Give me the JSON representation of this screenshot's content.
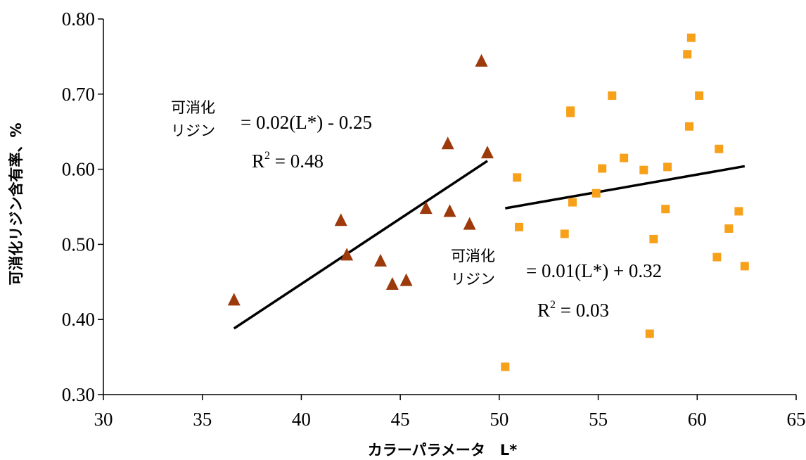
{
  "chart_data": {
    "type": "scatter",
    "xlabel": "カラーパラメータ　L*",
    "ylabel": "可消化リジン含有率、%",
    "xlim": [
      30,
      65
    ],
    "ylim": [
      0.3,
      0.8
    ],
    "x_ticks": [
      "30",
      "35",
      "40",
      "45",
      "50",
      "55",
      "60",
      "65"
    ],
    "y_ticks": [
      "0.30",
      "0.40",
      "0.50",
      "0.60",
      "0.70",
      "0.80"
    ],
    "grid": false,
    "legend": "none",
    "series": [
      {
        "marker": "triangle",
        "color": "#9c3a0c",
        "points": [
          [
            36.6,
            0.426
          ],
          [
            42.0,
            0.532
          ],
          [
            42.3,
            0.486
          ],
          [
            44.0,
            0.478
          ],
          [
            44.6,
            0.447
          ],
          [
            45.3,
            0.452
          ],
          [
            46.3,
            0.548
          ],
          [
            47.4,
            0.634
          ],
          [
            47.5,
            0.544
          ],
          [
            48.5,
            0.527
          ],
          [
            49.1,
            0.744
          ],
          [
            49.4,
            0.622
          ]
        ],
        "trendline": {
          "x": [
            36.6,
            49.4
          ],
          "y": [
            0.388,
            0.611
          ]
        },
        "annotation": {
          "label_lines": [
            "可消化",
            "リジン"
          ],
          "equation": "= 0.02(L*) - 0.25",
          "r2_prefix": "R",
          "r2_sup": "2",
          "r2_value": " = 0.48"
        }
      },
      {
        "marker": "square",
        "color": "#f7a11a",
        "points": [
          [
            50.3,
            0.337
          ],
          [
            50.9,
            0.589
          ],
          [
            51.0,
            0.523
          ],
          [
            53.3,
            0.514
          ],
          [
            53.6,
            0.675
          ],
          [
            53.6,
            0.678
          ],
          [
            53.7,
            0.556
          ],
          [
            54.9,
            0.568
          ],
          [
            55.2,
            0.601
          ],
          [
            55.7,
            0.698
          ],
          [
            56.3,
            0.615
          ],
          [
            57.3,
            0.599
          ],
          [
            57.6,
            0.381
          ],
          [
            57.8,
            0.507
          ],
          [
            58.4,
            0.547
          ],
          [
            58.5,
            0.603
          ],
          [
            59.5,
            0.753
          ],
          [
            59.6,
            0.657
          ],
          [
            59.7,
            0.775
          ],
          [
            60.1,
            0.698
          ],
          [
            61.0,
            0.483
          ],
          [
            61.1,
            0.627
          ],
          [
            61.6,
            0.521
          ],
          [
            62.1,
            0.544
          ],
          [
            62.4,
            0.471
          ]
        ],
        "trendline": {
          "x": [
            50.3,
            62.4
          ],
          "y": [
            0.548,
            0.604
          ]
        },
        "annotation": {
          "label_lines": [
            "可消化",
            "リジン"
          ],
          "equation": "= 0.01(L*) + 0.32",
          "r2_prefix": "R",
          "r2_sup": "2",
          "r2_value": " = 0.03"
        }
      }
    ]
  }
}
